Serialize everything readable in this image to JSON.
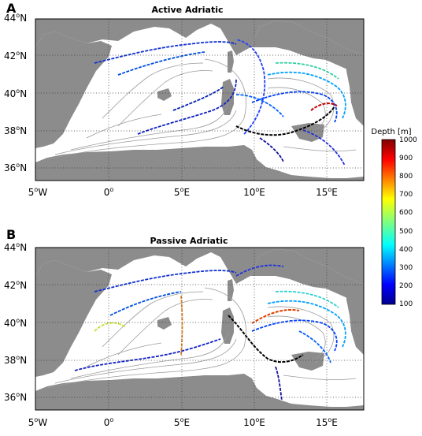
{
  "panels": [
    {
      "letter": "A",
      "title": "Active Adriatic",
      "lat_ticks": [
        "44",
        "42",
        "40",
        "38",
        "36"
      ],
      "lon_ticks": [
        "5",
        "0",
        "5",
        "10",
        "15"
      ],
      "lon_hemis": [
        "W",
        "",
        "E",
        "E",
        "E"
      ]
    },
    {
      "letter": "B",
      "title": "Passive Adriatic",
      "lat_ticks": [
        "44",
        "42",
        "40",
        "38",
        "36"
      ],
      "lon_ticks": [
        "5",
        "0",
        "5",
        "10",
        "15"
      ],
      "lon_hemis": [
        "W",
        "",
        "E",
        "E",
        "E"
      ]
    }
  ],
  "axis": {
    "lat_suffix": "N",
    "degree_symbol": "o"
  },
  "colorbar": {
    "label": "Depth [m]",
    "ticks": [
      "1000",
      "900",
      "800",
      "700",
      "600",
      "500",
      "400",
      "300",
      "200",
      "100"
    ],
    "range": [
      100,
      1000
    ],
    "colormap": "jet"
  },
  "colors": {
    "land": "#8c8c8c",
    "sea": "#ffffff",
    "bathymetry": "#9a9a9a",
    "grid": "#333333"
  }
}
